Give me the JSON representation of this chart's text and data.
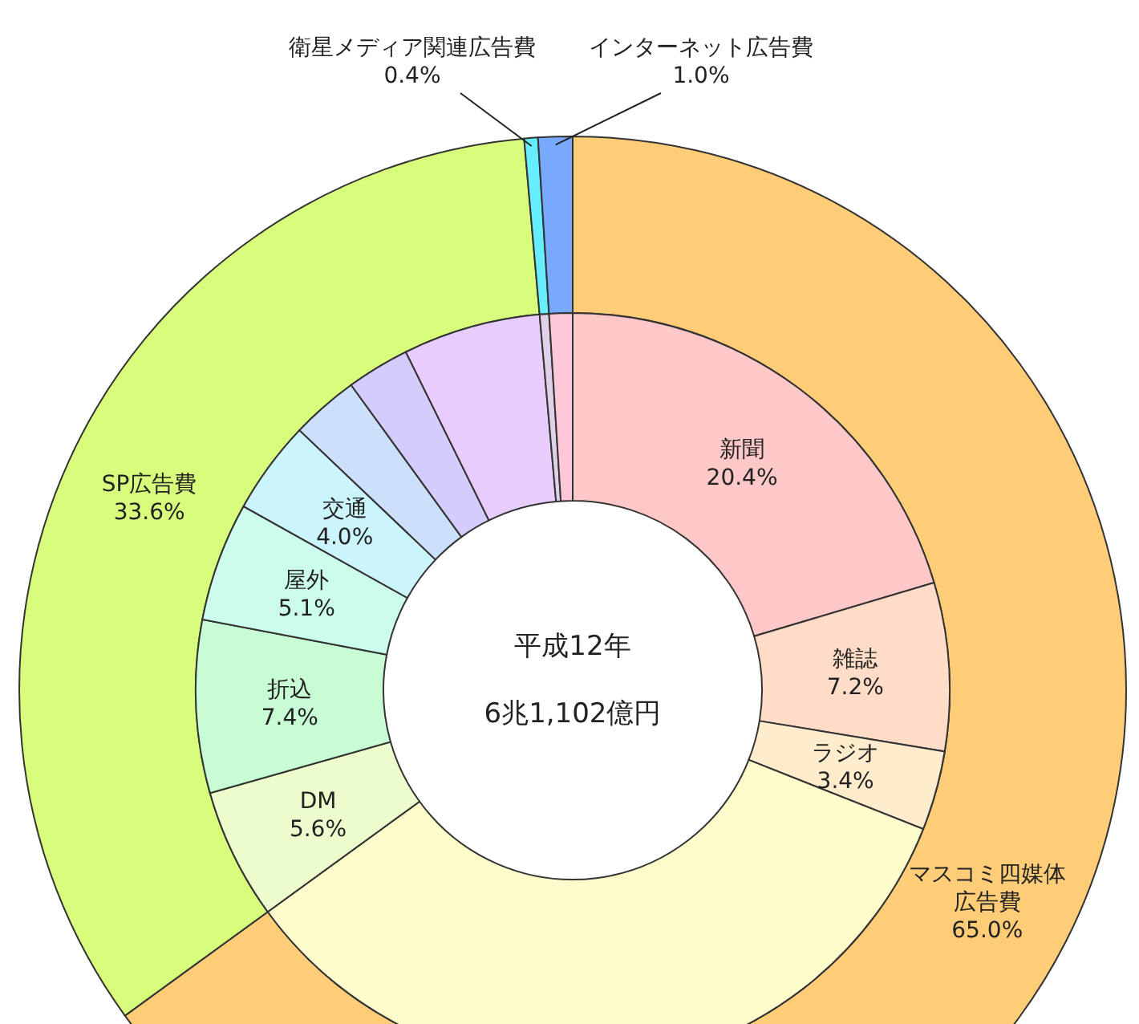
{
  "chart_data": [
    {
      "type": "donut",
      "title": "平成12年",
      "subtitle": "6兆1,102億円",
      "categories": [
        "マスコミ四媒体広告費",
        "SP広告費",
        "衛星メディア関連広告費",
        "インターネット広告費"
      ],
      "values": [
        65.0,
        33.6,
        0.4,
        1.0
      ],
      "colors": [
        "#ffcc77",
        "#d8fc7c",
        "#66eeff",
        "#77aaff"
      ],
      "value_labels": [
        "65.0%",
        "33.6%",
        "0.4%",
        "1.0%"
      ]
    },
    {
      "type": "donut",
      "categories": [
        "新聞",
        "雑誌",
        "ラジオ",
        null,
        "DM",
        "折込",
        "屋外",
        "交通",
        null,
        null,
        null,
        null,
        null
      ],
      "values": [
        20.4,
        7.2,
        3.4,
        34.0,
        5.6,
        7.4,
        5.1,
        4.0,
        2.9,
        2.7,
        5.9,
        0.4,
        1.0
      ],
      "colors": [
        "#ffc8c8",
        "#ffdcc8",
        "#ffeccc",
        "#fffccc",
        "#ecfccc",
        "#c8fcd4",
        "#ccfcec",
        "#ccf4fc",
        "#cce0fc",
        "#d4ccfc",
        "#e8ccfc",
        "#e0d0e8",
        "#ffc8d8"
      ],
      "value_labels": [
        "20.4%",
        "7.2%",
        "3.4%",
        null,
        "5.6%",
        "7.4%",
        "5.1%",
        "4.0%",
        null,
        null,
        null,
        null,
        null
      ]
    }
  ]
}
